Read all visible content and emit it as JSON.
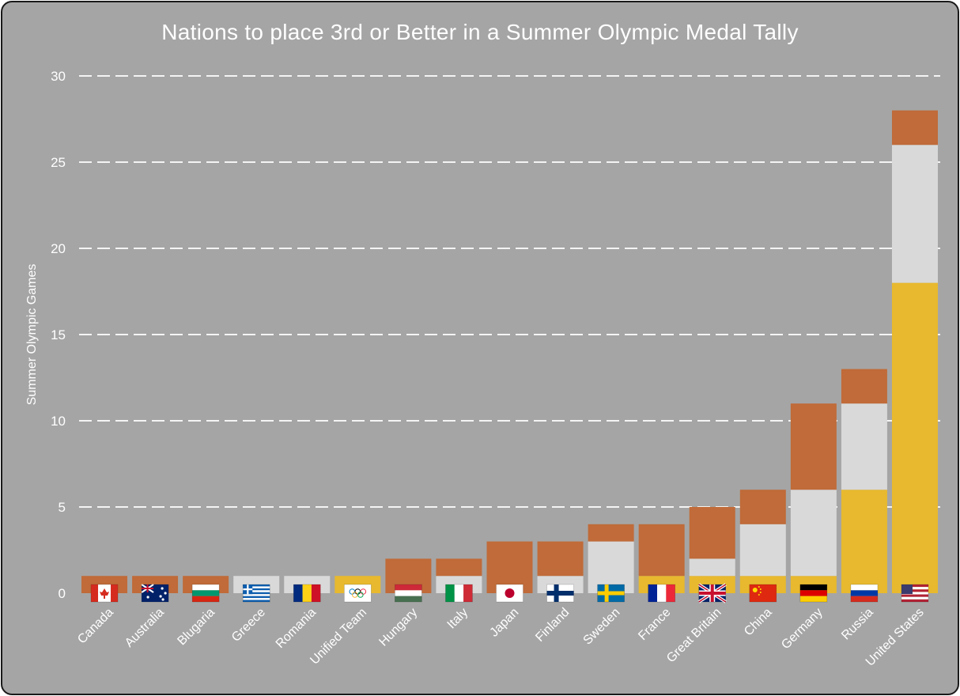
{
  "chart_data": {
    "type": "bar",
    "stacked": true,
    "title": "Nations to place 3rd or Better in a Summer Olympic Medal Tally",
    "xlabel": "",
    "ylabel": "Summer Olympic Games",
    "ylim": [
      0,
      30
    ],
    "yticks": [
      0,
      5,
      10,
      15,
      20,
      25,
      30
    ],
    "grid": true,
    "categories": [
      "Canada",
      "Australia",
      "Blugaria",
      "Greece",
      "Romania",
      "Unified Team",
      "Hungary",
      "Italy",
      "Japan",
      "Finland",
      "Sweden",
      "France",
      "Great Britain",
      "China",
      "Germany",
      "Russia",
      "United States"
    ],
    "flags": [
      "canada-flag-icon",
      "australia-flag-icon",
      "bulgaria-flag-icon",
      "greece-flag-icon",
      "romania-flag-icon",
      "olympic-flag-icon",
      "hungary-flag-icon",
      "italy-flag-icon",
      "japan-flag-icon",
      "finland-flag-icon",
      "sweden-flag-icon",
      "france-flag-icon",
      "uk-flag-icon",
      "china-flag-icon",
      "germany-flag-icon",
      "russia-flag-icon",
      "usa-flag-icon"
    ],
    "series": [
      {
        "color": "#e8b92e",
        "values": [
          0,
          0,
          0,
          0,
          0,
          1,
          0,
          0,
          0,
          0,
          0,
          1,
          1,
          1,
          1,
          6,
          18
        ]
      },
      {
        "color": "#d9d9d9",
        "values": [
          0,
          0,
          0,
          1,
          1,
          0,
          0,
          1,
          0,
          1,
          3,
          0,
          1,
          3,
          5,
          5,
          8
        ]
      },
      {
        "color": "#c06b39",
        "values": [
          1,
          1,
          1,
          0,
          0,
          0,
          2,
          1,
          3,
          2,
          1,
          3,
          3,
          2,
          5,
          2,
          2
        ]
      }
    ]
  }
}
